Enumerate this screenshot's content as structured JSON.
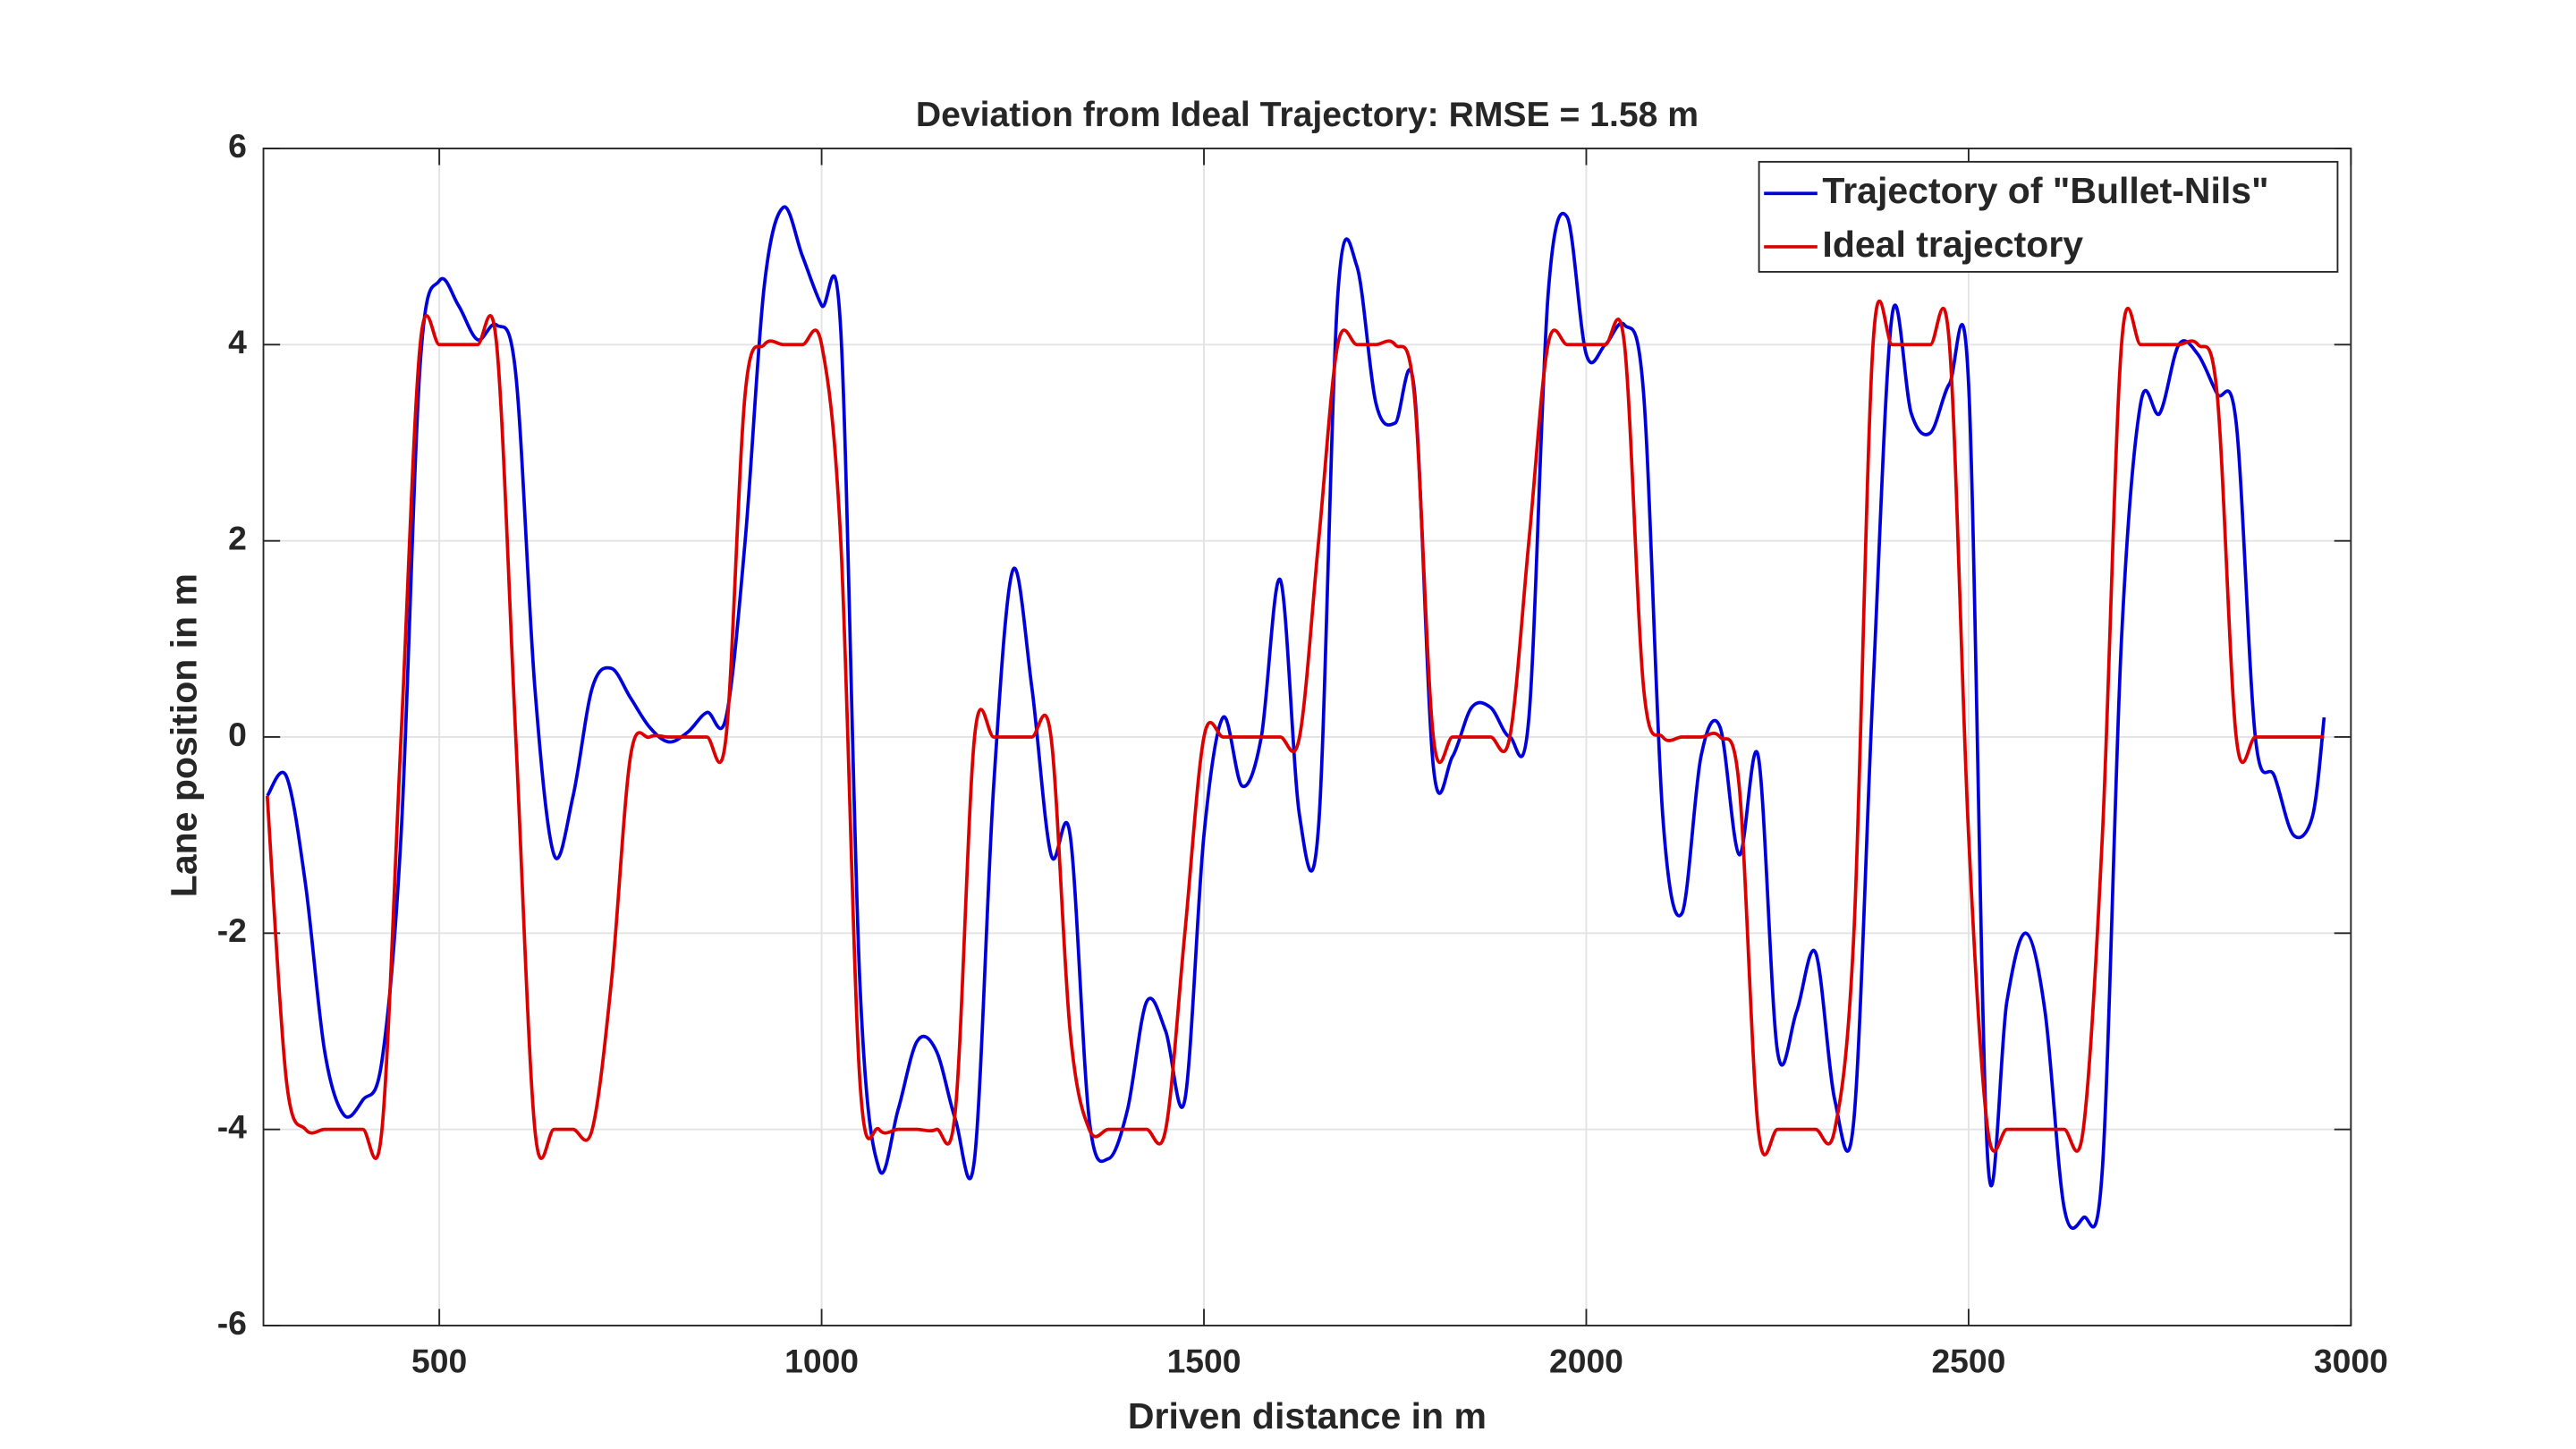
{
  "chart_data": {
    "type": "line",
    "title": "Deviation from Ideal Trajectory: RMSE = 1.58 m",
    "xlabel": "Driven distance in m",
    "ylabel": "Lane position in m",
    "x": [
      275,
      300,
      325,
      350,
      375,
      400,
      425,
      450,
      475,
      500,
      525,
      550,
      575,
      600,
      625,
      650,
      675,
      700,
      725,
      750,
      775,
      800,
      825,
      850,
      875,
      900,
      925,
      950,
      975,
      1000,
      1025,
      1050,
      1075,
      1100,
      1125,
      1150,
      1175,
      1200,
      1225,
      1250,
      1275,
      1300,
      1325,
      1350,
      1375,
      1400,
      1425,
      1450,
      1475,
      1500,
      1525,
      1550,
      1575,
      1600,
      1625,
      1650,
      1675,
      1700,
      1725,
      1750,
      1775,
      1800,
      1825,
      1850,
      1875,
      1900,
      1925,
      1950,
      1975,
      2000,
      2025,
      2050,
      2075,
      2100,
      2125,
      2150,
      2175,
      2200,
      2225,
      2250,
      2275,
      2300,
      2325,
      2350,
      2375,
      2400,
      2425,
      2450,
      2475,
      2500,
      2525,
      2550,
      2575,
      2600,
      2625,
      2650,
      2675,
      2700,
      2725,
      2750,
      2775,
      2800,
      2825,
      2850,
      2875,
      2900,
      2925,
      2950,
      2965
    ],
    "series": [
      {
        "name": "Trajectory of \"Bullet-Nils\"",
        "color": "#0000dd",
        "values": [
          -0.6,
          -0.4,
          -1.5,
          -3.2,
          -3.85,
          -3.7,
          -3.3,
          -1.0,
          3.8,
          4.65,
          4.4,
          4.05,
          4.2,
          3.7,
          0.5,
          -1.2,
          -0.6,
          0.5,
          0.7,
          0.4,
          0.1,
          -0.05,
          0.05,
          0.25,
          0.2,
          2.0,
          4.6,
          5.4,
          4.9,
          4.4,
          4.15,
          -2.5,
          -4.4,
          -3.8,
          -3.1,
          -3.2,
          -3.9,
          -4.3,
          -0.5,
          1.7,
          0.5,
          -1.2,
          -1.0,
          -3.9,
          -4.3,
          -3.8,
          -2.7,
          -3.0,
          -3.7,
          -1.0,
          0.2,
          -0.5,
          0.0,
          1.6,
          -0.8,
          -0.9,
          4.5,
          4.8,
          3.4,
          3.2,
          3.55,
          -0.3,
          -0.2,
          0.3,
          0.3,
          0.0,
          0.2,
          4.5,
          5.3,
          3.9,
          4.0,
          4.2,
          3.5,
          -0.8,
          -1.8,
          -0.2,
          0.1,
          -1.2,
          -0.2,
          -3.2,
          -2.8,
          -2.2,
          -3.7,
          -3.9,
          0.5,
          4.3,
          3.3,
          3.1,
          3.6,
          3.6,
          -4.3,
          -2.7,
          -2.0,
          -2.8,
          -4.8,
          -4.9,
          -4.4,
          1.0,
          3.4,
          3.3,
          4.0,
          3.9,
          3.5,
          3.2,
          0.0,
          -0.4,
          -1.0,
          -0.8,
          0.2
        ]
      },
      {
        "name": "Ideal trajectory",
        "color": "#dd0000",
        "values": [
          -0.6,
          -3.5,
          -4,
          -4,
          -4,
          -4,
          -4,
          0,
          4,
          4,
          4,
          4,
          4,
          0,
          -4,
          -4,
          -4,
          -4,
          -2.5,
          -0.2,
          0,
          0,
          0,
          0,
          0,
          3.5,
          4,
          4,
          4,
          4,
          2,
          -3.5,
          -4,
          -4,
          -4,
          -4,
          -3.8,
          0,
          0,
          0,
          0,
          0,
          -3,
          -4,
          -4,
          -4,
          -4,
          -4,
          -2,
          0,
          0,
          0,
          0,
          0,
          0,
          2,
          4,
          4,
          4,
          4,
          3.5,
          0,
          0,
          0,
          0,
          0,
          2,
          4,
          4,
          4,
          4,
          4,
          0.5,
          0,
          0,
          0,
          0,
          -0.5,
          -4,
          -4,
          -4,
          -4,
          -4,
          -2,
          4,
          4,
          4,
          4,
          4,
          -1,
          -4,
          -4,
          -4,
          -4,
          -4,
          -4,
          -1,
          4,
          4,
          4,
          4,
          4,
          3.5,
          0,
          0,
          0,
          0,
          0,
          0
        ]
      }
    ],
    "xlim": [
      270,
      3000
    ],
    "xticks": [
      500,
      1000,
      1500,
      2000,
      2500,
      3000
    ],
    "ylim": [
      -6,
      6
    ],
    "yticks": [
      -6,
      -4,
      -2,
      0,
      2,
      4,
      6
    ],
    "grid": true,
    "legend": "top-right"
  }
}
